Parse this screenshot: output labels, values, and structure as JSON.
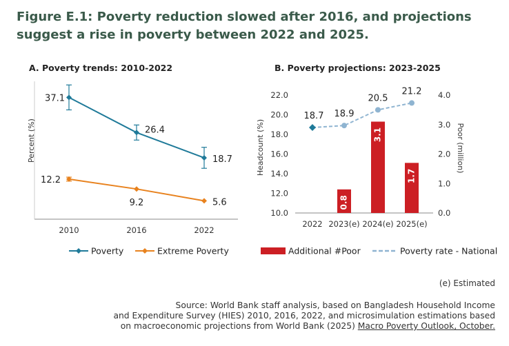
{
  "figure": {
    "title": "Figure E.1: Poverty reduction slowed after 2016, and projections suggest a rise in poverty between 2022 and 2025."
  },
  "colors": {
    "poverty": "#1f7a99",
    "extreme": "#e8821e",
    "bar": "#cc1f24",
    "proj_line": "#8fb4d1",
    "axis": "#888888"
  },
  "chart_data": [
    {
      "type": "line",
      "title": "A. Poverty trends: 2010-2022",
      "ylabel": "Percent (%)",
      "xlabel": "",
      "categories": [
        "2010",
        "2016",
        "2022"
      ],
      "ylim": [
        0,
        42
      ],
      "grid": false,
      "legend_position": "bottom",
      "series": [
        {
          "name": "Poverty",
          "values": [
            37.1,
            26.4,
            18.7
          ],
          "labels": [
            "37.1",
            "26.4",
            "18.7"
          ],
          "error": [
            3.8,
            2.3,
            3.2
          ],
          "marker": "diamond"
        },
        {
          "name": "Extreme Poverty",
          "values": [
            12.2,
            9.2,
            5.6
          ],
          "labels": [
            "12.2",
            "9.2",
            "5.6"
          ],
          "error": [
            0.6,
            0,
            0
          ],
          "marker": "diamond"
        }
      ]
    },
    {
      "type": "bar",
      "title": "B. Poverty projections: 2023-2025",
      "ylabel": "Headcount (%)",
      "y2label": "Poor (million)",
      "categories": [
        "2022",
        "2023(e)",
        "2024(e)",
        "2025(e)"
      ],
      "ylim": [
        10.0,
        22.0
      ],
      "y_ticks": [
        "10.0",
        "12.0",
        "14.0",
        "16.0",
        "18.0",
        "20.0",
        "22.0"
      ],
      "y2lim": [
        0.0,
        4.0
      ],
      "y2_ticks": [
        "0.0",
        "1.0",
        "2.0",
        "3.0",
        "4.0"
      ],
      "grid": false,
      "legend_position": "bottom",
      "bars": {
        "name": "Additional #Poor",
        "axis": "secondary",
        "categories": [
          "2023(e)",
          "2024(e)",
          "2025(e)"
        ],
        "values": [
          0.8,
          3.1,
          1.7
        ],
        "labels": [
          "0.8",
          "3.1",
          "1.7"
        ]
      },
      "line": {
        "name": "Poverty rate - National",
        "values": [
          18.7,
          18.9,
          20.5,
          21.2
        ],
        "labels": [
          "18.7",
          "18.9",
          "20.5",
          "21.2"
        ],
        "first_point_marker": "diamond"
      }
    }
  ],
  "note": "(e) Estimated",
  "source": {
    "lines": [
      "Source: World Bank staff analysis, based on Bangladesh Household Income",
      "and Expenditure Survey (HIES) 2010, 2016, 2022, and microsimulation estimations based"
    ],
    "last_prefix": "on macroeconomic projections from World Bank (2025) ",
    "link": "Macro Poverty Outlook, October."
  }
}
